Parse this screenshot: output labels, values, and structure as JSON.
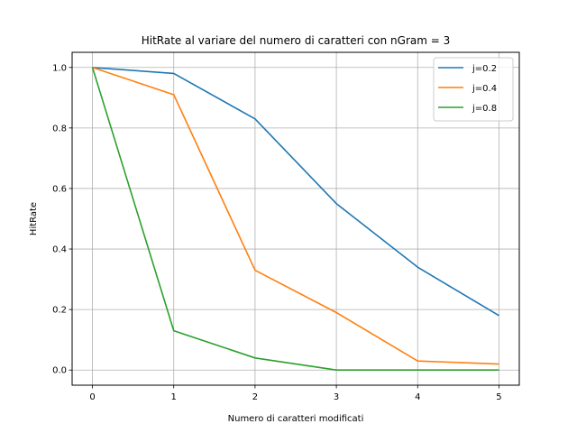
{
  "chart_data": {
    "type": "line",
    "title": "HitRate al variare del numero di caratteri con nGram = 3",
    "xlabel": "Numero di caratteri modificati",
    "ylabel": "HitRate",
    "x": [
      0,
      1,
      2,
      3,
      4,
      5
    ],
    "xlim": [
      -0.25,
      5.25
    ],
    "ylim": [
      -0.05,
      1.05
    ],
    "xticks": [
      "0",
      "1",
      "2",
      "3",
      "4",
      "5"
    ],
    "yticks": [
      "0.0",
      "0.2",
      "0.4",
      "0.6",
      "0.8",
      "1.0"
    ],
    "grid": true,
    "legend_position": "top-right",
    "series": [
      {
        "name": "j=0.2",
        "color": "#1f77b4",
        "values": [
          1.0,
          0.98,
          0.83,
          0.55,
          0.34,
          0.18
        ]
      },
      {
        "name": "j=0.4",
        "color": "#ff7f0e",
        "values": [
          1.0,
          0.91,
          0.33,
          0.19,
          0.03,
          0.02
        ]
      },
      {
        "name": "j=0.8",
        "color": "#2ca02c",
        "values": [
          1.0,
          0.13,
          0.04,
          0.0,
          0.0,
          0.0
        ]
      }
    ]
  }
}
